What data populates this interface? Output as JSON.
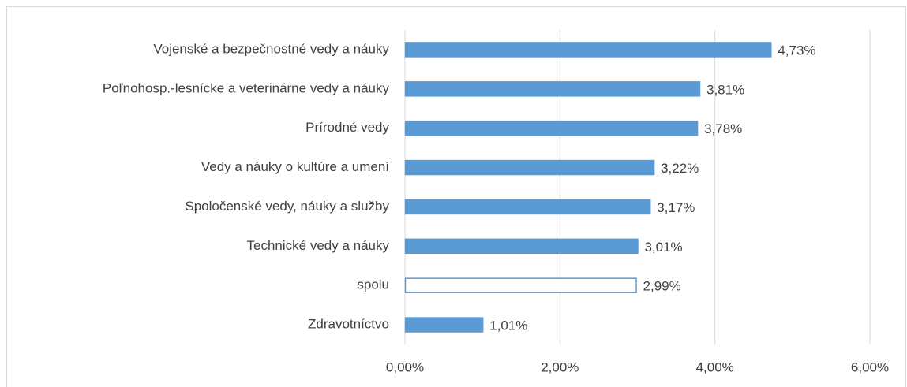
{
  "chart_data": {
    "type": "bar",
    "orientation": "horizontal",
    "categories": [
      "Vojenské a bezpečnostné vedy a náuky",
      "Poľnohosp.-lesnícke a veterinárne vedy a náuky",
      "Prírodné vedy",
      "Vedy a náuky o kultúre a umení",
      "Spoločenské vedy, náuky a služby",
      "Technické vedy a náuky",
      "spolu",
      "Zdravotníctvo"
    ],
    "values": [
      4.73,
      3.81,
      3.78,
      3.22,
      3.17,
      3.01,
      2.99,
      1.01
    ],
    "value_labels": [
      "4,73%",
      "3,81%",
      "3,78%",
      "3,22%",
      "3,17%",
      "3,01%",
      "2,99%",
      "1,01%"
    ],
    "colors": [
      "#5b9bd5",
      "#5b9bd5",
      "#5b9bd5",
      "#5b9bd5",
      "#5b9bd5",
      "#5b9bd5",
      "#ffffff",
      "#5b9bd5"
    ],
    "edge_color": "#5b9bd5",
    "xlim": [
      0,
      6
    ],
    "xticks": [
      {
        "value": 0,
        "label": "0,00%"
      },
      {
        "value": 2,
        "label": "2,00%"
      },
      {
        "value": 4,
        "label": "4,00%"
      },
      {
        "value": 6,
        "label": "6,00%"
      }
    ],
    "grid": true
  }
}
